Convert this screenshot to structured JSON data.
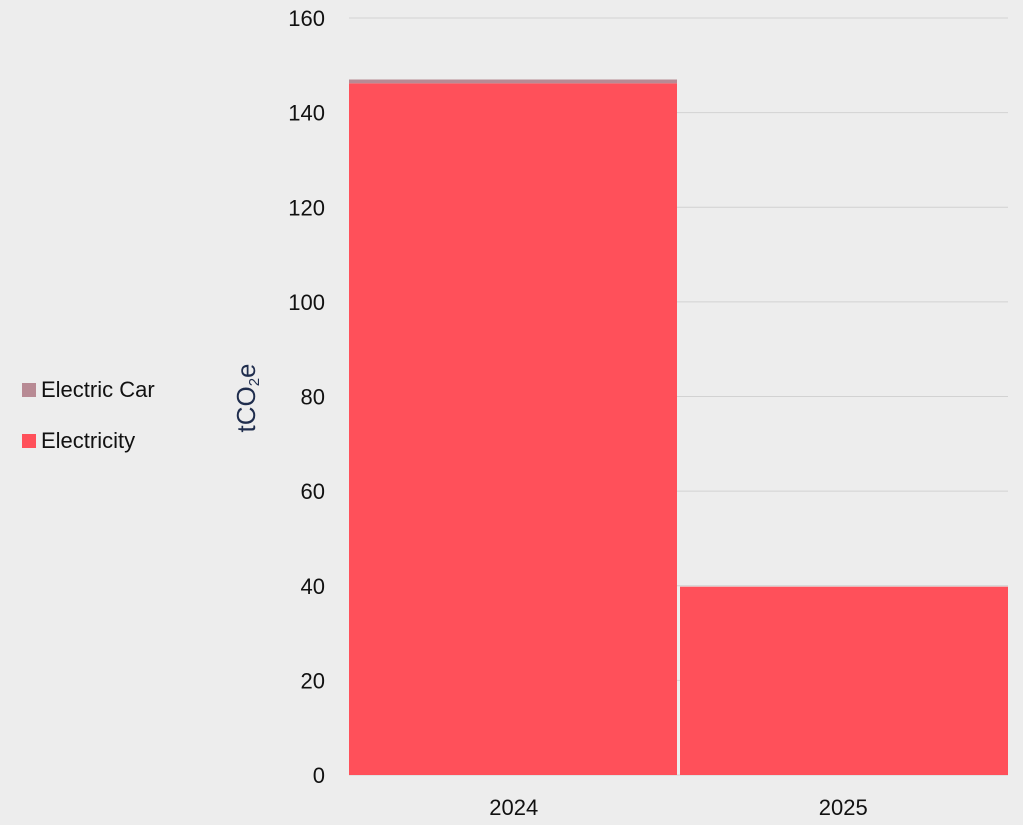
{
  "chart_data": {
    "type": "bar",
    "stacked": true,
    "categories": [
      "2024",
      "2025"
    ],
    "series": [
      {
        "name": "Electricity",
        "color": "#ff505a",
        "values": [
          146.2,
          39.8
        ]
      },
      {
        "name": "Electric Car",
        "color": "#b88a94",
        "values": [
          0.8,
          0
        ]
      }
    ],
    "ylabel": {
      "main": "tCO",
      "sub": "2",
      "tail": "e"
    },
    "ylim": [
      0,
      160
    ],
    "yticks": [
      0,
      20,
      40,
      60,
      80,
      100,
      120,
      140,
      160
    ],
    "grid": true,
    "legend_position": "left",
    "legend_order": [
      "Electric Car",
      "Electricity"
    ]
  }
}
